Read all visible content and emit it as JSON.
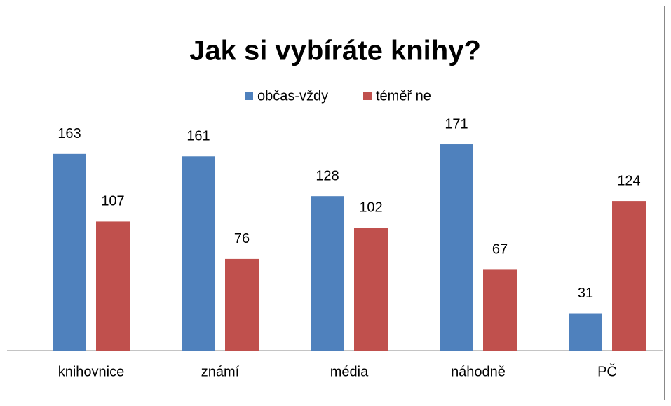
{
  "chart_data": {
    "type": "bar",
    "title": "Jak si vybíráte knihy?",
    "categories": [
      "knihovnice",
      "známí",
      "média",
      "náhodně",
      "PČ"
    ],
    "series": [
      {
        "name": "občas-vždy",
        "color": "#4f81bd",
        "values": [
          163,
          161,
          128,
          171,
          31
        ]
      },
      {
        "name": "téměř ne",
        "color": "#c0504d",
        "values": [
          107,
          76,
          102,
          67,
          124
        ]
      }
    ],
    "ylim": [
      0,
      180
    ],
    "legend": "top"
  }
}
